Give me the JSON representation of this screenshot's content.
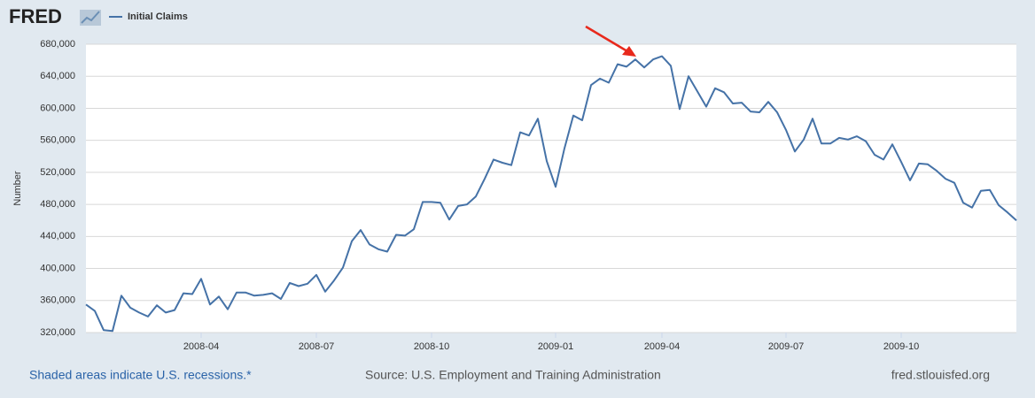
{
  "logo": "FRED",
  "chart_data": {
    "type": "line",
    "y_label": "Number",
    "categories": [
      null,
      null,
      null,
      null,
      null,
      null,
      null,
      null,
      null,
      null,
      null,
      null,
      null,
      "2008-04",
      null,
      null,
      null,
      null,
      null,
      null,
      null,
      null,
      null,
      null,
      null,
      null,
      "2008-07",
      null,
      null,
      null,
      null,
      null,
      null,
      null,
      null,
      null,
      null,
      null,
      null,
      "2008-10",
      null,
      null,
      null,
      null,
      null,
      null,
      null,
      null,
      null,
      null,
      null,
      null,
      null,
      "2009-01",
      null,
      null,
      null,
      null,
      null,
      null,
      null,
      null,
      null,
      null,
      null,
      "2009-04",
      null,
      null,
      null,
      null,
      null,
      null,
      null,
      null,
      null,
      null,
      null,
      null,
      null,
      "2009-07",
      null,
      null,
      null,
      null,
      null,
      null,
      null,
      null,
      null,
      null,
      null,
      null,
      "2009-10",
      null,
      null,
      null,
      null,
      null,
      null,
      null,
      null,
      null,
      null,
      null,
      null,
      null
    ],
    "series": [
      {
        "name": "Initial Claims",
        "color": "#4572a7",
        "values": [
          355000,
          347000,
          323000,
          322000,
          366000,
          351000,
          345000,
          340000,
          354000,
          345000,
          348000,
          369000,
          368000,
          387000,
          355000,
          365000,
          349000,
          370000,
          370000,
          366000,
          367000,
          369000,
          362000,
          382000,
          378000,
          381000,
          392000,
          371000,
          385000,
          401000,
          434000,
          448000,
          430000,
          424000,
          421000,
          442000,
          441000,
          449000,
          483000,
          483000,
          482000,
          461000,
          478000,
          480000,
          490000,
          512000,
          536000,
          532000,
          529000,
          570000,
          566000,
          587000,
          534000,
          502000,
          550000,
          591000,
          585000,
          629000,
          637000,
          632000,
          655000,
          652000,
          661000,
          651000,
          661000,
          665000,
          653000,
          599000,
          640000,
          621000,
          602000,
          625000,
          620000,
          606000,
          607000,
          596000,
          595000,
          608000,
          595000,
          573000,
          546000,
          561000,
          587000,
          556000,
          556000,
          563000,
          561000,
          565000,
          559000,
          542000,
          536000,
          555000,
          533000,
          510000,
          531000,
          530000,
          522000,
          512000,
          507000,
          482000,
          476000,
          497000,
          498000,
          479000,
          470000,
          460000
        ]
      }
    ],
    "ylim": [
      320000,
      680000
    ],
    "yticks": [
      {
        "value": 320000,
        "label": "320,000"
      },
      {
        "value": 360000,
        "label": "360,000"
      },
      {
        "value": 400000,
        "label": "400,000"
      },
      {
        "value": 440000,
        "label": "440,000"
      },
      {
        "value": 480000,
        "label": "480,000"
      },
      {
        "value": 520000,
        "label": "520,000"
      },
      {
        "value": 560000,
        "label": "560,000"
      },
      {
        "value": 600000,
        "label": "600,000"
      },
      {
        "value": 640000,
        "label": "640,000"
      },
      {
        "value": 680000,
        "label": "680,000"
      }
    ],
    "grid": true
  },
  "footer": {
    "recessions": "Shaded areas indicate U.S. recessions.*",
    "source": "Source: U.S. Employment and Training Administration",
    "site": "fred.stlouisfed.org"
  }
}
